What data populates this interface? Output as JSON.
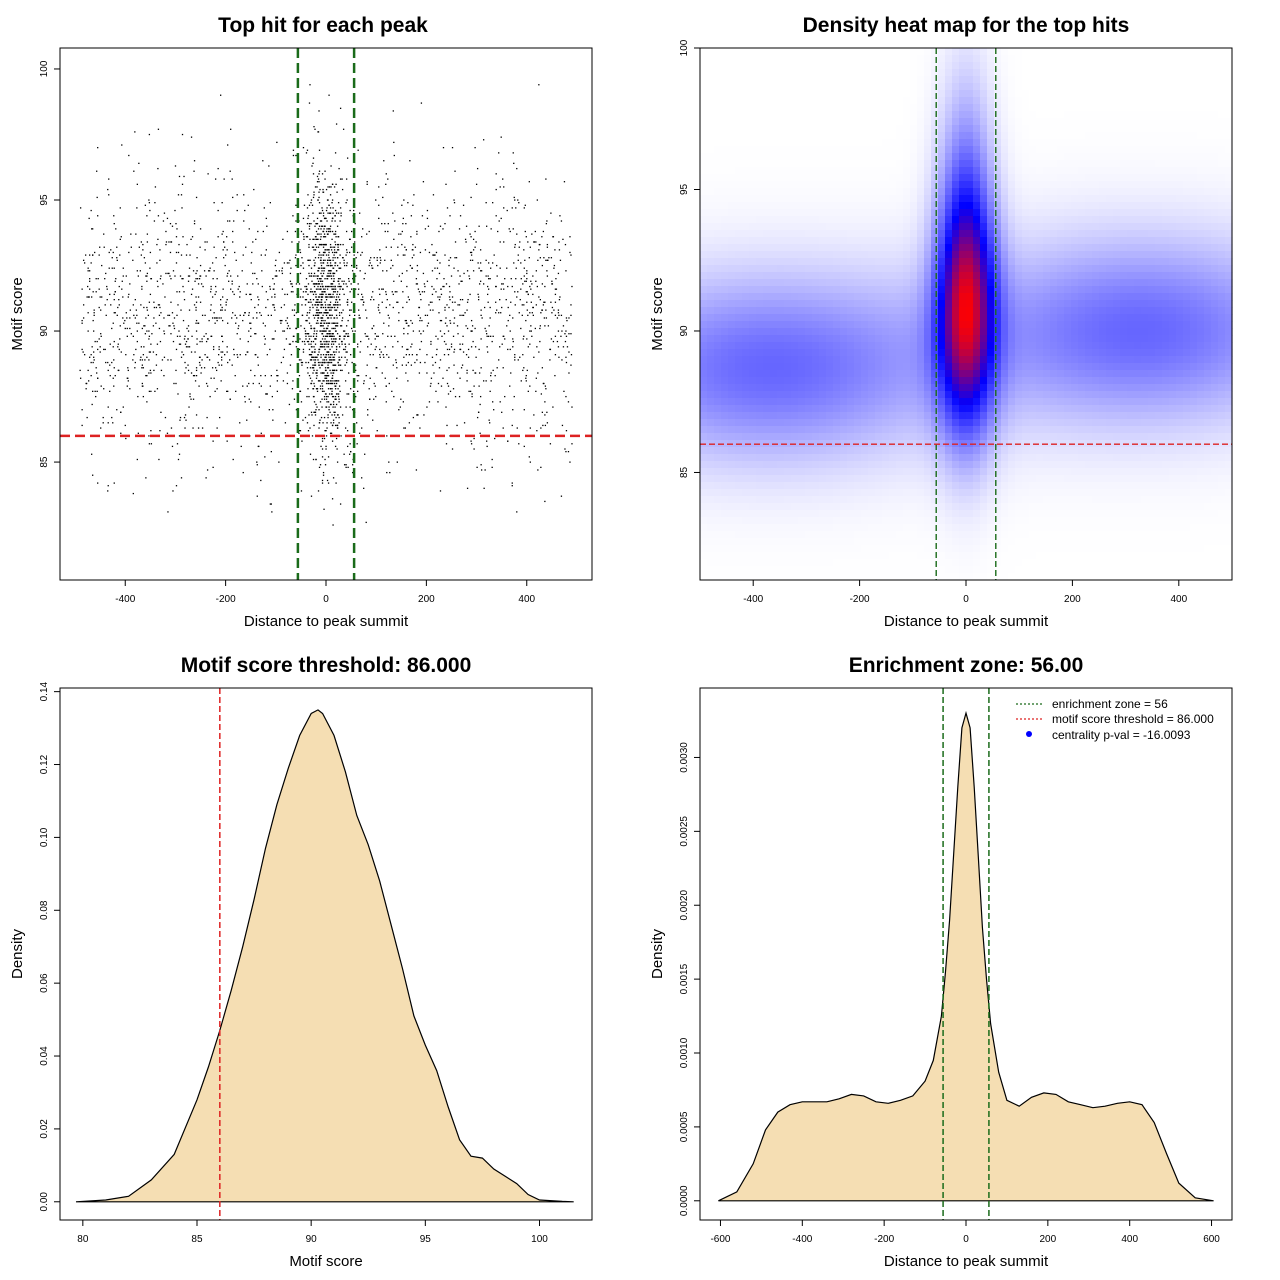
{
  "colors": {
    "threshold": "#dd2222",
    "zone": "#1a6b1a",
    "fill": "#f5deb3",
    "heat_low": "#ffffff",
    "heat_mid": "#0000ff",
    "heat_high": "#ff0000",
    "points": "#000000"
  },
  "chart_data": [
    {
      "type": "scatter",
      "id": "scatter",
      "title": "Top hit for each peak",
      "xlabel": "Distance to peak summit",
      "ylabel": "Motif score",
      "xlim": [
        -530,
        530
      ],
      "ylim": [
        80.5,
        100.8
      ],
      "xticks": [
        -400,
        -200,
        0,
        200,
        400
      ],
      "xtick_labels": [
        "-400",
        "-200",
        "0",
        "200",
        "400"
      ],
      "yticks": [
        85,
        90,
        95,
        100
      ],
      "ytick_labels": [
        "85",
        "90",
        "95",
        "100"
      ],
      "hline": 86,
      "vlines": [
        -56,
        56
      ],
      "n_points": 3200,
      "center_fraction": 0.32,
      "center_sd": 22,
      "score_mean": 90.6,
      "score_sd": 2.7,
      "score_range": [
        82.5,
        100
      ]
    },
    {
      "type": "heatmap",
      "id": "heatmap",
      "title": "Density heat map for the top hits",
      "xlabel": "Distance to peak summit",
      "ylabel": "Motif score",
      "xlim": [
        -500,
        500
      ],
      "ylim": [
        81.2,
        100
      ],
      "xticks": [
        -400,
        -200,
        0,
        200,
        400
      ],
      "xtick_labels": [
        "-400",
        "-200",
        "0",
        "200",
        "400"
      ],
      "yticks": [
        85,
        90,
        95,
        100
      ],
      "ytick_labels": [
        "85",
        "90",
        "95",
        "100"
      ],
      "hline": 86,
      "vlines": [
        -56,
        56
      ],
      "components": [
        {
          "x": 0,
          "y": 90.8,
          "sx": 38,
          "sy": 3.0,
          "w": 1.0
        },
        {
          "x": -370,
          "y": 88.7,
          "sx": 230,
          "sy": 2.3,
          "w": 0.42
        },
        {
          "x": 330,
          "y": 90.0,
          "sx": 230,
          "sy": 2.3,
          "w": 0.42
        },
        {
          "x": 0,
          "y": 95.5,
          "sx": 34,
          "sy": 3.0,
          "w": 0.22
        }
      ]
    },
    {
      "type": "area",
      "id": "score_density",
      "title": "Motif score threshold: 86.000",
      "xlabel": "Motif score",
      "ylabel": "Density",
      "xlim": [
        79,
        102.3
      ],
      "ylim": [
        -0.005,
        0.141
      ],
      "xticks": [
        80,
        85,
        90,
        95,
        100
      ],
      "xtick_labels": [
        "80",
        "85",
        "90",
        "95",
        "100"
      ],
      "yticks": [
        0,
        0.02,
        0.04,
        0.06,
        0.08,
        0.1,
        0.12,
        0.14
      ],
      "ytick_labels": [
        "0.00",
        "0.02",
        "0.04",
        "0.06",
        "0.08",
        "0.10",
        "0.12",
        "0.14"
      ],
      "vlines": [
        86
      ],
      "x": [
        79.7,
        81,
        82,
        83,
        84,
        85,
        85.5,
        86,
        86.5,
        87,
        87.5,
        88,
        88.5,
        89,
        89.5,
        90,
        90.3,
        90.5,
        91,
        91.5,
        92,
        92.5,
        93,
        93.5,
        94,
        94.5,
        95,
        95.5,
        96,
        96.5,
        97,
        97.5,
        98,
        98.5,
        99,
        99.5,
        100,
        101,
        101.5
      ],
      "y": [
        0,
        0.0005,
        0.0015,
        0.006,
        0.013,
        0.028,
        0.037,
        0.047,
        0.058,
        0.07,
        0.083,
        0.097,
        0.109,
        0.119,
        0.128,
        0.134,
        0.135,
        0.134,
        0.128,
        0.118,
        0.106,
        0.098,
        0.088,
        0.076,
        0.064,
        0.051,
        0.043,
        0.036,
        0.026,
        0.017,
        0.0125,
        0.012,
        0.009,
        0.007,
        0.005,
        0.002,
        0.0005,
        0.0001,
        0
      ]
    },
    {
      "type": "area",
      "id": "distance_density",
      "title": "Enrichment zone: 56.00",
      "xlabel": "Distance to peak summit",
      "ylabel": "Density",
      "xlim": [
        -650,
        650
      ],
      "ylim": [
        -0.00013,
        0.00347
      ],
      "xticks": [
        -600,
        -400,
        -200,
        0,
        200,
        400,
        600
      ],
      "xtick_labels": [
        "-600",
        "-400",
        "-200",
        "0",
        "200",
        "400",
        "600"
      ],
      "yticks": [
        0,
        0.0005,
        0.001,
        0.0015,
        0.002,
        0.0025,
        0.003
      ],
      "ytick_labels": [
        "0.0000",
        "0.0005",
        "0.0010",
        "0.0015",
        "0.0020",
        "0.0025",
        "0.0030"
      ],
      "vlines": [
        -56,
        56
      ],
      "x": [
        -605,
        -560,
        -520,
        -490,
        -460,
        -430,
        -400,
        -370,
        -340,
        -310,
        -280,
        -250,
        -220,
        -190,
        -160,
        -130,
        -100,
        -80,
        -60,
        -50,
        -40,
        -30,
        -20,
        -10,
        0,
        10,
        20,
        30,
        40,
        50,
        60,
        80,
        100,
        130,
        160,
        190,
        220,
        250,
        280,
        310,
        340,
        370,
        400,
        430,
        460,
        490,
        520,
        560,
        605
      ],
      "y": [
        0,
        6e-05,
        0.00025,
        0.00048,
        0.0006,
        0.00065,
        0.00067,
        0.00067,
        0.00067,
        0.00069,
        0.00072,
        0.00071,
        0.00067,
        0.00066,
        0.00068,
        0.00071,
        0.00081,
        0.00095,
        0.00125,
        0.00155,
        0.0019,
        0.00235,
        0.0028,
        0.0032,
        0.0033,
        0.0032,
        0.0028,
        0.00233,
        0.00185,
        0.0015,
        0.0012,
        0.00087,
        0.00068,
        0.00064,
        0.0007,
        0.00073,
        0.00072,
        0.00067,
        0.00065,
        0.00063,
        0.00064,
        0.00066,
        0.00067,
        0.00065,
        0.00053,
        0.00032,
        0.00012,
        2e-05,
        0
      ],
      "legend": [
        {
          "label": "enrichment zone = 56",
          "symbol": "dotted-line",
          "color": "#1a6b1a"
        },
        {
          "label": "motif score threshold = 86.000",
          "symbol": "dotted-line",
          "color": "#dd2222"
        },
        {
          "label": "centrality p-val = -16.0093",
          "symbol": "dot",
          "color": "#0000ff"
        }
      ],
      "legend_position": "top-right"
    }
  ]
}
